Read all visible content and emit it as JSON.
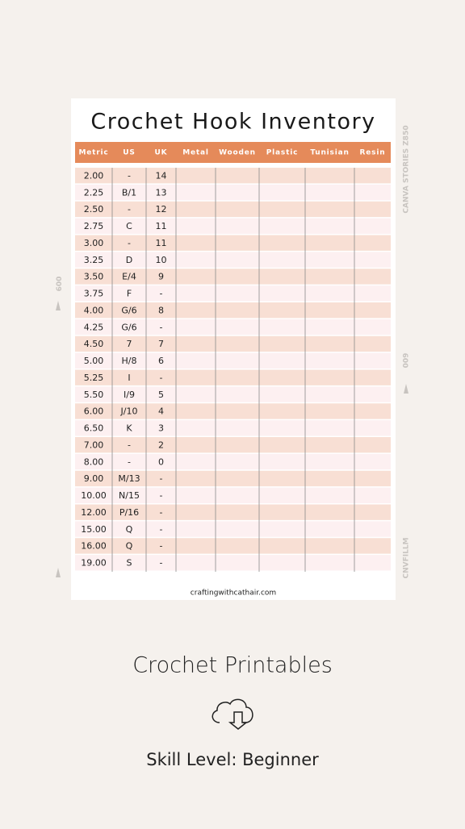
{
  "card": {
    "title": "Crochet Hook Inventory",
    "footer": "craftingwithcathair.com"
  },
  "table": {
    "header": [
      "Metric",
      "US",
      "UK",
      "Metal",
      "Wooden",
      "Plastic",
      "Tunisian",
      "Resin"
    ],
    "rows": [
      [
        "2.00",
        "-",
        "14"
      ],
      [
        "2.25",
        "B/1",
        "13"
      ],
      [
        "2.50",
        "-",
        "12"
      ],
      [
        "2.75",
        "C",
        "11"
      ],
      [
        "3.00",
        "-",
        "11"
      ],
      [
        "3.25",
        "D",
        "10"
      ],
      [
        "3.50",
        "E/4",
        "9"
      ],
      [
        "3.75",
        "F",
        "-"
      ],
      [
        "4.00",
        "G/6",
        "8"
      ],
      [
        "4.25",
        "G/6",
        "-"
      ],
      [
        "4.50",
        "7",
        "7"
      ],
      [
        "5.00",
        "H/8",
        "6"
      ],
      [
        "5.25",
        "I",
        "-"
      ],
      [
        "5.50",
        "I/9",
        "5"
      ],
      [
        "6.00",
        "J/10",
        "4"
      ],
      [
        "6.50",
        "K",
        "3"
      ],
      [
        "7.00",
        "-",
        "2"
      ],
      [
        "8.00",
        "-",
        "0"
      ],
      [
        "9.00",
        "M/13",
        "-"
      ],
      [
        "10.00",
        "N/15",
        "-"
      ],
      [
        "12.00",
        "P/16",
        "-"
      ],
      [
        "15.00",
        "Q",
        "-"
      ],
      [
        "16.00",
        "Q",
        "-"
      ],
      [
        "19.00",
        "S",
        "-"
      ]
    ]
  },
  "film": {
    "top_right": "CANVA STORIES Z850",
    "mid_right": "009",
    "mid_left": "009",
    "bottom_right": "CNVFILLM"
  },
  "caption": {
    "title": "Crochet Printables",
    "skill": "Skill Level: Beginner"
  }
}
